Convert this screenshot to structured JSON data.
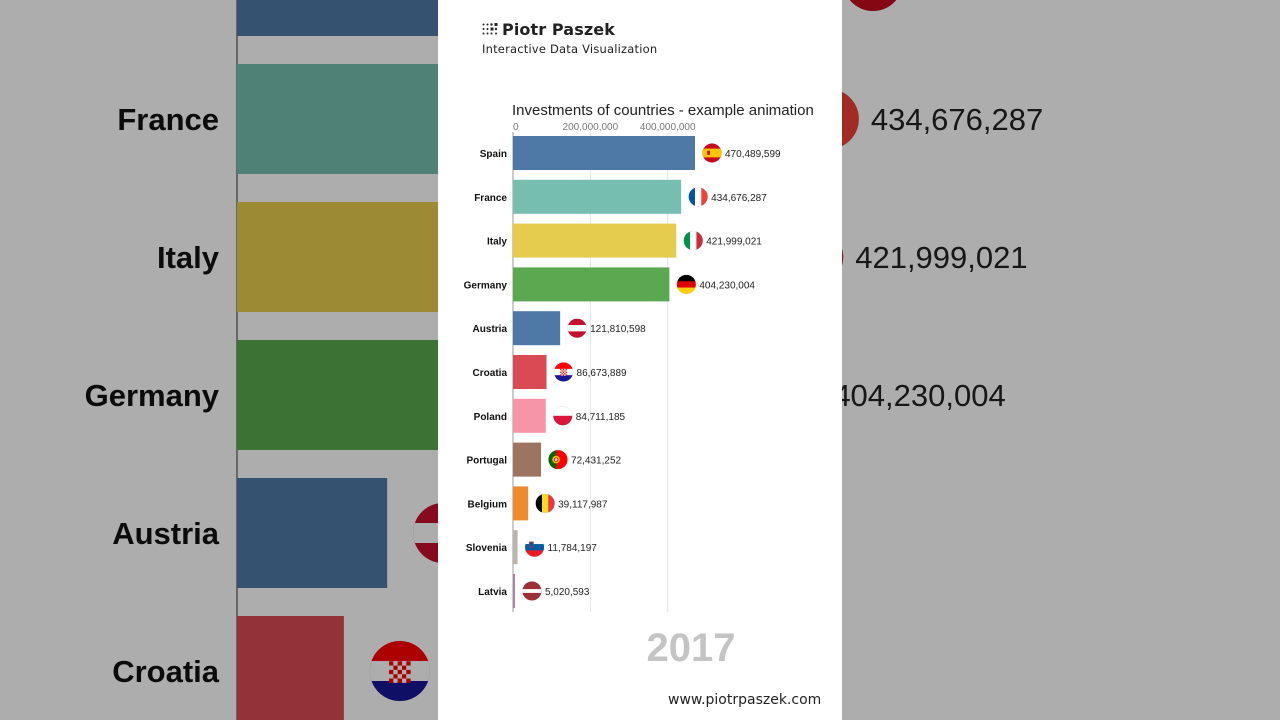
{
  "brand": {
    "name": "Piotr Paszek",
    "subtitle": "Interactive Data Visualization",
    "website": "www.piotrpaszek.com"
  },
  "chart_data": {
    "type": "bar",
    "orientation": "horizontal",
    "title": "Investments of countries - example animation",
    "period_label": "2017",
    "xlim": [
      0,
      470489599
    ],
    "xticks": [
      0,
      200000000,
      400000000
    ],
    "xtick_labels": [
      "0",
      "200,000,000",
      "400,000,000"
    ],
    "grid": true,
    "categories": [
      "Spain",
      "France",
      "Italy",
      "Germany",
      "Austria",
      "Croatia",
      "Poland",
      "Portugal",
      "Belgium",
      "Slovenia",
      "Latvia"
    ],
    "values": [
      470489599,
      434676287,
      421999021,
      404230004,
      121810598,
      86673889,
      84711185,
      72431252,
      39117987,
      11784197,
      5020593
    ],
    "value_labels": [
      "470,489,599",
      "434,676,287",
      "421,999,021",
      "404,230,004",
      "121,810,598",
      "86,673,889",
      "84,711,185",
      "72,431,252",
      "39,117,987",
      "11,784,197",
      "5,020,593"
    ],
    "colors": [
      "#4e79a7",
      "#76bfb0",
      "#e6cc4d",
      "#5aa84f",
      "#4e79a7",
      "#d94a55",
      "#f795a8",
      "#9c7460",
      "#ee8c2d",
      "#bbb3ad",
      "#b07aa1"
    ],
    "flags": [
      "spain-flag",
      "france-flag",
      "italy-flag",
      "germany-flag",
      "austria-flag",
      "croatia-flag",
      "poland-flag",
      "portugal-flag",
      "belgium-flag",
      "slovenia-flag",
      "latvia-flag"
    ]
  }
}
